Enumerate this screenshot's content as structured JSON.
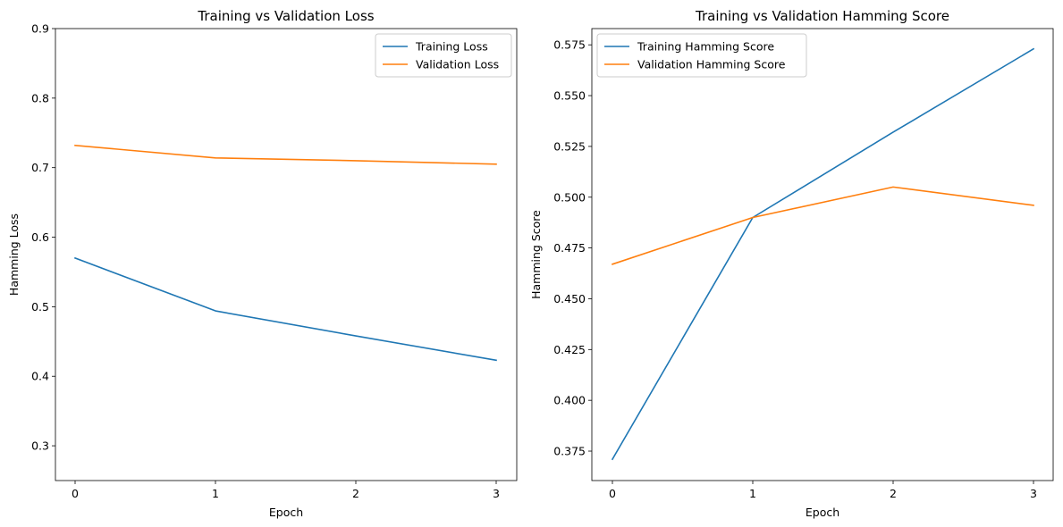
{
  "chart_data": [
    {
      "type": "line",
      "title": "Training vs Validation Loss",
      "xlabel": "Epoch",
      "ylabel": "Hamming Loss",
      "x": [
        0,
        1,
        2,
        3
      ],
      "xticks": [
        "0",
        "1",
        "2",
        "3"
      ],
      "ylim": [
        0.25,
        0.9
      ],
      "yticks": [
        "0.3",
        "0.4",
        "0.5",
        "0.6",
        "0.7",
        "0.8",
        "0.9"
      ],
      "legend_position": "upper right",
      "grid": false,
      "series": [
        {
          "name": "Training Loss",
          "color": "#1f77b4",
          "values": [
            0.57,
            0.494,
            0.458,
            0.423
          ]
        },
        {
          "name": "Validation Loss",
          "color": "#ff7f0e",
          "values": [
            0.732,
            0.714,
            0.71,
            0.705
          ]
        }
      ]
    },
    {
      "type": "line",
      "title": "Training vs Validation Hamming Score",
      "xlabel": "Epoch",
      "ylabel": "Hamming Score",
      "x": [
        0,
        1,
        2,
        3
      ],
      "xticks": [
        "0",
        "1",
        "2",
        "3"
      ],
      "ylim": [
        0.3605,
        0.583
      ],
      "yticks": [
        "0.375",
        "0.400",
        "0.425",
        "0.450",
        "0.475",
        "0.500",
        "0.525",
        "0.550",
        "0.575"
      ],
      "legend_position": "upper left",
      "grid": false,
      "series": [
        {
          "name": "Training Hamming Score",
          "color": "#1f77b4",
          "values": [
            0.371,
            0.49,
            0.532,
            0.573
          ]
        },
        {
          "name": "Validation Hamming Score",
          "color": "#ff7f0e",
          "values": [
            0.467,
            0.49,
            0.505,
            0.496
          ]
        }
      ]
    }
  ]
}
